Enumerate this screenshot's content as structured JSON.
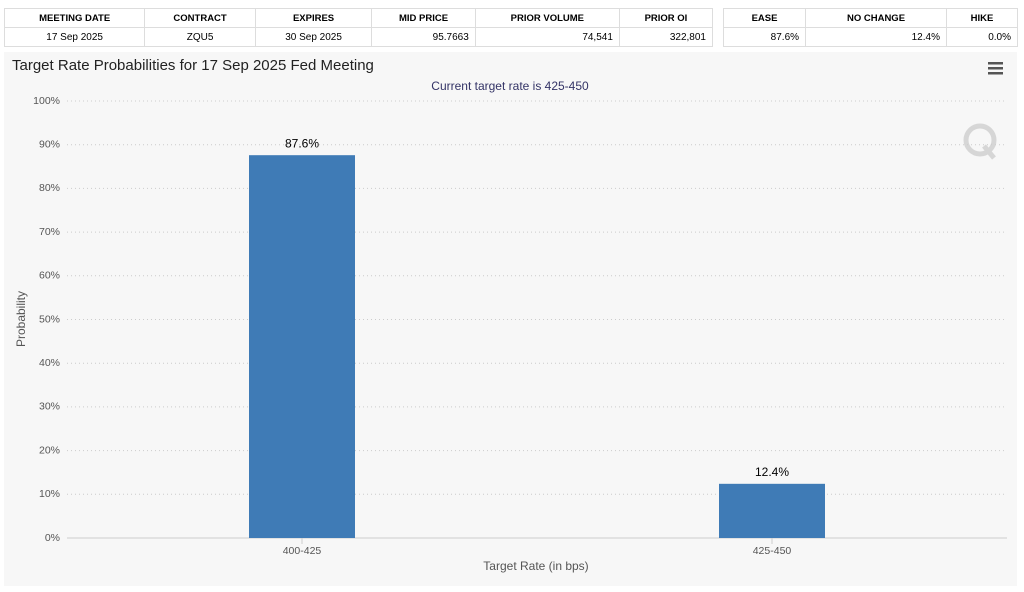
{
  "tables": [
    {
      "header": [
        "MEETING DATE",
        "CONTRACT",
        "EXPIRES",
        "MID PRICE",
        "PRIOR VOLUME",
        "PRIOR OI"
      ],
      "row": [
        "17 Sep 2025",
        "ZQU5",
        "30 Sep 2025",
        "95.7663",
        "74,541",
        "322,801"
      ]
    },
    {
      "header": [
        "EASE",
        "NO CHANGE",
        "HIKE"
      ],
      "row": [
        "87.6%",
        "12.4%",
        "0.0%"
      ]
    }
  ],
  "chart_data": {
    "type": "bar",
    "title": "Target Rate Probabilities for 17 Sep 2025 Fed Meeting",
    "subtitle": "Current target rate is 425-450",
    "x_label": "Target Rate (in bps)",
    "y_label": "Probability",
    "categories": [
      "400-425",
      "425-450"
    ],
    "values": [
      87.6,
      12.4
    ],
    "value_labels": [
      "87.6%",
      "12.4%"
    ],
    "color": "#3f7bb6",
    "ylim": [
      0,
      100
    ],
    "yticks": [
      {
        "value": 0,
        "label": "0%"
      },
      {
        "value": 10,
        "label": "10%"
      },
      {
        "value": 20,
        "label": "20%"
      },
      {
        "value": 30,
        "label": "30%"
      },
      {
        "value": 40,
        "label": "40%"
      },
      {
        "value": 50,
        "label": "50%"
      },
      {
        "value": 60,
        "label": "60%"
      },
      {
        "value": 70,
        "label": "70%"
      },
      {
        "value": 80,
        "label": "80%"
      },
      {
        "value": 90,
        "label": "90%"
      },
      {
        "value": 100,
        "label": "100%"
      }
    ],
    "grid": true
  }
}
